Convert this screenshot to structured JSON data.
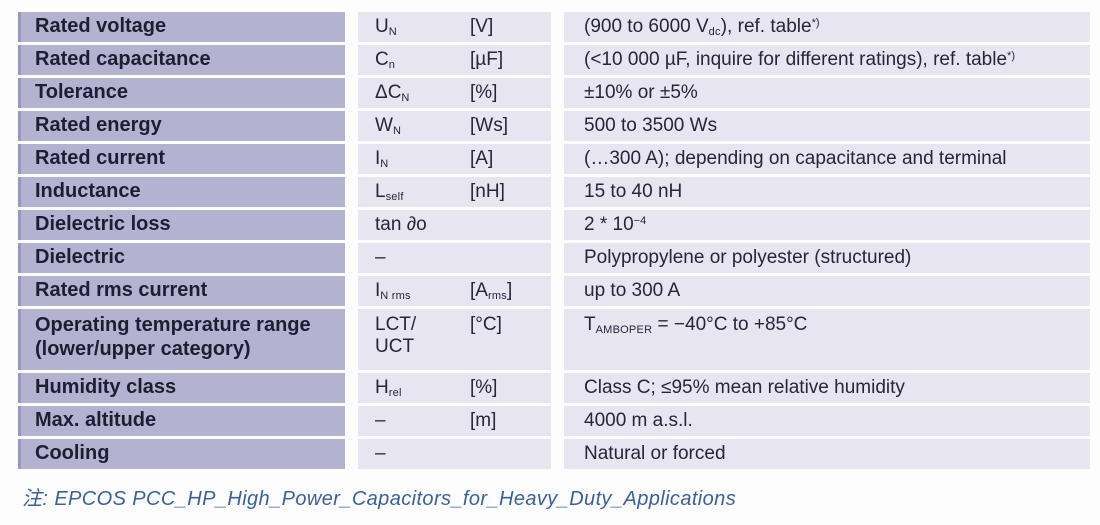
{
  "colors": {
    "page_bg": "#fdfdfd",
    "label_bg": "#b3b2d1",
    "cell_bg": "#e6e5f0",
    "label_text": "#1e1e33",
    "body_text": "#26263a",
    "note_color": "#3a5f9e"
  },
  "table": {
    "rows": [
      {
        "label": [
          {
            "text": "Rated voltage"
          }
        ],
        "symbol": [
          {
            "text": "U"
          },
          {
            "text": "N",
            "style": "sub"
          }
        ],
        "unit": [
          {
            "text": "[V]"
          }
        ],
        "value": [
          {
            "text": "(900 to 6000 V"
          },
          {
            "text": "dc",
            "style": "sub"
          },
          {
            "text": "), ref. table"
          },
          {
            "text": "*)",
            "style": "sup"
          }
        ]
      },
      {
        "label": [
          {
            "text": "Rated capacitance"
          }
        ],
        "symbol": [
          {
            "text": "C"
          },
          {
            "text": "n",
            "style": "sub"
          }
        ],
        "unit": [
          {
            "text": "[µF]"
          }
        ],
        "value": [
          {
            "text": "(<10 000 µF, inquire for different ratings), ref. table"
          },
          {
            "text": "*)",
            "style": "sup"
          }
        ]
      },
      {
        "label": [
          {
            "text": "Tolerance"
          }
        ],
        "symbol": [
          {
            "text": "ΔC"
          },
          {
            "text": "N",
            "style": "sub"
          }
        ],
        "unit": [
          {
            "text": "[%]"
          }
        ],
        "value": [
          {
            "text": "±10% or ±5%"
          }
        ]
      },
      {
        "label": [
          {
            "text": "Rated energy"
          }
        ],
        "symbol": [
          {
            "text": "W"
          },
          {
            "text": "N",
            "style": "sub"
          }
        ],
        "unit": [
          {
            "text": "[Ws]"
          }
        ],
        "value": [
          {
            "text": "500 to 3500 Ws"
          }
        ]
      },
      {
        "label": [
          {
            "text": "Rated current"
          }
        ],
        "symbol": [
          {
            "text": "I"
          },
          {
            "text": "N",
            "style": "sub"
          }
        ],
        "unit": [
          {
            "text": "[A]"
          }
        ],
        "value": [
          {
            "text": "(…300 A); depending on capacitance and terminal"
          }
        ]
      },
      {
        "label": [
          {
            "text": "Inductance"
          }
        ],
        "symbol": [
          {
            "text": "L"
          },
          {
            "text": "self",
            "style": "sub"
          }
        ],
        "unit": [
          {
            "text": "[nH]"
          }
        ],
        "value": [
          {
            "text": "15 to 40 nH"
          }
        ]
      },
      {
        "label": [
          {
            "text": "Dielectric loss"
          }
        ],
        "symbol": [
          {
            "text": "tan ∂o"
          }
        ],
        "unit": [
          {
            "text": ""
          }
        ],
        "value": [
          {
            "text": "2 * 10"
          },
          {
            "text": "−4",
            "style": "sup"
          }
        ]
      },
      {
        "label": [
          {
            "text": "Dielectric"
          }
        ],
        "symbol": [
          {
            "text": "–"
          }
        ],
        "unit": [
          {
            "text": ""
          }
        ],
        "value": [
          {
            "text": "Polypropylene or polyester (structured)"
          }
        ]
      },
      {
        "label": [
          {
            "text": "Rated rms current"
          }
        ],
        "symbol": [
          {
            "text": "I"
          },
          {
            "text": "N rms",
            "style": "sub"
          }
        ],
        "unit": [
          {
            "text": "[A"
          },
          {
            "text": "rms",
            "style": "sub"
          },
          {
            "text": "]"
          }
        ],
        "value": [
          {
            "text": "up to 300 A"
          }
        ]
      },
      {
        "label": [
          {
            "text": "Operating temperature range"
          },
          {
            "br": true
          },
          {
            "text": "(lower/upper category)"
          }
        ],
        "symbol": [
          {
            "text": "LCT/"
          },
          {
            "br": true
          },
          {
            "text": "UCT"
          }
        ],
        "unit": [
          {
            "text": "[°C]"
          }
        ],
        "value": [
          {
            "text": "T"
          },
          {
            "text": "AMBOPER",
            "style": "sub"
          },
          {
            "text": " = −40°C to +85°C"
          }
        ],
        "tall": true
      },
      {
        "label": [
          {
            "text": "Humidity class"
          }
        ],
        "symbol": [
          {
            "text": "H"
          },
          {
            "text": "rel",
            "style": "sub"
          }
        ],
        "unit": [
          {
            "text": "[%]"
          }
        ],
        "value": [
          {
            "text": "Class C; ≤95% mean relative humidity"
          }
        ]
      },
      {
        "label": [
          {
            "text": "Max. altitude"
          }
        ],
        "symbol": [
          {
            "text": "–"
          }
        ],
        "unit": [
          {
            "text": "[m]"
          }
        ],
        "value": [
          {
            "text": "4000 m a.s.l."
          }
        ]
      },
      {
        "label": [
          {
            "text": "Cooling"
          }
        ],
        "symbol": [
          {
            "text": "–"
          }
        ],
        "unit": [
          {
            "text": ""
          }
        ],
        "value": [
          {
            "text": "Natural or forced"
          }
        ]
      }
    ]
  },
  "footnote": {
    "text": "注: EPCOS PCC_HP_High_Power_Capacitors_for_Heavy_Duty_Applications"
  }
}
